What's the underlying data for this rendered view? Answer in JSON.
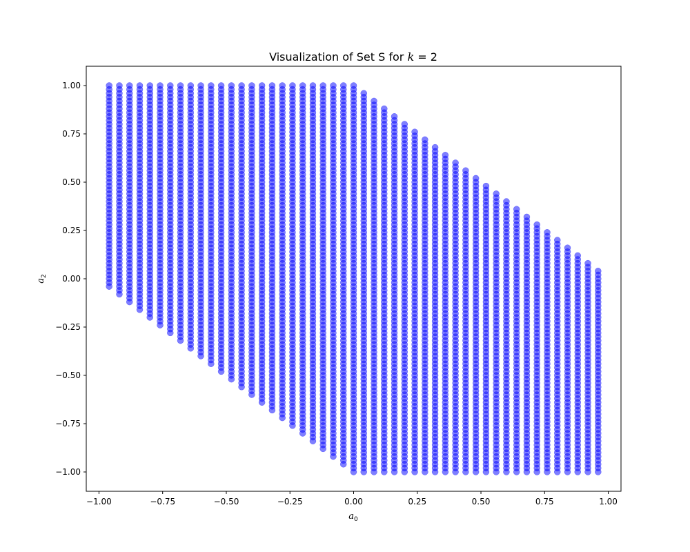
{
  "chart_data": {
    "type": "scatter",
    "title": "Visualization of Set S for k = 2",
    "title_parts": {
      "prefix": "Visualization of Set S for ",
      "var": "k",
      "suffix": " = 2"
    },
    "xlabel": {
      "base": "a",
      "sub": "0"
    },
    "ylabel": {
      "base": "a",
      "sub": "2"
    },
    "xlim": [
      -1.05,
      1.05
    ],
    "ylim": [
      -1.1,
      1.1
    ],
    "xticks": [
      -1.0,
      -0.75,
      -0.5,
      -0.25,
      0.0,
      0.25,
      0.5,
      0.75,
      1.0
    ],
    "xtick_labels": [
      "−1.00",
      "−0.75",
      "−0.50",
      "−0.25",
      "0.00",
      "0.25",
      "0.50",
      "0.75",
      "1.00"
    ],
    "yticks": [
      -1.0,
      -0.75,
      -0.5,
      -0.25,
      0.0,
      0.25,
      0.5,
      0.75,
      1.0
    ],
    "ytick_labels": [
      "−1.00",
      "−0.75",
      "−0.50",
      "−0.25",
      "0.00",
      "0.25",
      "0.50",
      "0.75",
      "1.00"
    ],
    "grid": false,
    "legend": "none",
    "marker": {
      "color": "#0000ff",
      "alpha": 0.5
    },
    "series": [
      {
        "a0_values": {
          "start": -0.96,
          "stop": 0.96,
          "step": 0.04
        },
        "a2_values": {
          "start": -1.0,
          "stop": 1.0,
          "step": 0.02
        },
        "region": {
          "lower_bound": "a2 >= -a0 - 1",
          "upper_bound": "a2 <= -a0 + 1"
        }
      }
    ]
  }
}
